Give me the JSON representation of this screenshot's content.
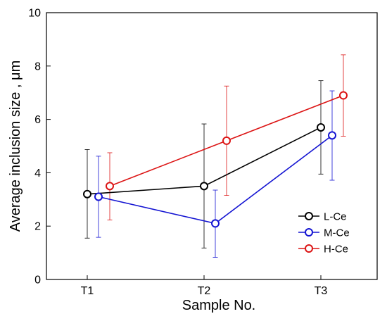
{
  "chart_data": {
    "type": "line",
    "title": "",
    "xlabel": "Sample No.",
    "ylabel": "Average inclusion size , μm",
    "categories": [
      "T1",
      "T2",
      "T3"
    ],
    "ylim": [
      0,
      10
    ],
    "yticks": [
      0,
      2,
      4,
      6,
      8,
      10
    ],
    "grid": false,
    "legend_position": "bottom-right",
    "series": [
      {
        "name": "L-Ce",
        "color": "#000000",
        "values": [
          3.2,
          3.5,
          5.7
        ],
        "error_low": [
          1.55,
          1.18,
          3.95
        ],
        "error_high": [
          4.87,
          5.83,
          7.45
        ]
      },
      {
        "name": "M-Ce",
        "color": "#1414d2",
        "values": [
          3.1,
          2.1,
          5.4
        ],
        "error_low": [
          1.58,
          0.83,
          3.72
        ],
        "error_high": [
          4.62,
          3.35,
          7.07
        ]
      },
      {
        "name": "H-Ce",
        "color": "#dc1414",
        "values": [
          3.5,
          5.2,
          6.9
        ],
        "error_low": [
          2.23,
          3.15,
          5.37
        ],
        "error_high": [
          4.75,
          7.25,
          8.42
        ]
      }
    ]
  }
}
